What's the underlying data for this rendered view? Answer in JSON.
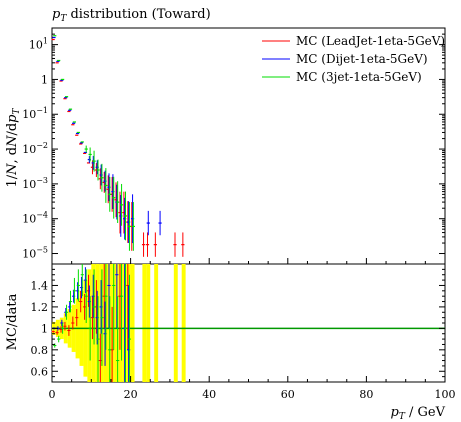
{
  "chart_data": {
    "type": "scatter",
    "title": "p_T distribution (Toward)",
    "xlabel": "p_T / GeV",
    "top_panel": {
      "ylabel": "1/N dN/dp_T",
      "yscale": "log",
      "ylim": [
        5e-06,
        30
      ],
      "yticks": [
        "10^-5",
        "10^-4",
        "10^-3",
        "10^-2",
        "10^-1",
        "1",
        "10^1"
      ],
      "legend_position": "top-right",
      "series": [
        {
          "name": "MC (LeadJet-1eta-5GeV)",
          "color": "#ff0000",
          "x": [
            0.5,
            1.5,
            2.5,
            3.5,
            4.5,
            5.5,
            6.5,
            7.5,
            8.5,
            9.5,
            10.5,
            11.5,
            12.5,
            13.5,
            14.5,
            15.5,
            16.5,
            17.5,
            18.5,
            19.5,
            20.5,
            23.5,
            24.5,
            26.5,
            31.5,
            33.5
          ],
          "y": [
            14,
            3.0,
            0.9,
            0.28,
            0.12,
            0.05,
            0.025,
            0.014,
            0.0075,
            0.004,
            0.003,
            0.0025,
            0.0014,
            0.0011,
            0.0007,
            0.0005,
            0.00035,
            0.00015,
            0.00015,
            8e-05,
            6e-05,
            1.8e-05,
            1.8e-05,
            1.8e-05,
            1.8e-05,
            1.8e-05
          ],
          "err_log": [
            0,
            0,
            0,
            0,
            0,
            0,
            0,
            0,
            0,
            0,
            0.2,
            0.2,
            0.3,
            0.3,
            0.4,
            0.5,
            0.5,
            0.6,
            0.6,
            0.6,
            0.7,
            0.35,
            0.35,
            0.35,
            0.35,
            0.35
          ]
        },
        {
          "name": "MC (Dijet-1eta-5GeV)",
          "color": "#0000ff",
          "x": [
            0.5,
            1.5,
            2.5,
            3.5,
            4.5,
            5.5,
            6.5,
            7.5,
            8.5,
            9.5,
            10.5,
            11.5,
            12.5,
            13.5,
            14.5,
            15.5,
            16.5,
            17.5,
            18.5,
            19.5,
            20.5,
            24.5,
            27.5
          ],
          "y": [
            16,
            3.3,
            0.95,
            0.3,
            0.13,
            0.055,
            0.028,
            0.015,
            0.008,
            0.005,
            0.004,
            0.003,
            0.0018,
            0.0012,
            0.0008,
            0.0006,
            0.0003,
            0.00012,
            0.0001,
            8e-05,
            0.0001,
            7.5e-05,
            7.5e-05
          ],
          "err_log": [
            0,
            0,
            0,
            0,
            0,
            0,
            0,
            0,
            0,
            0.1,
            0.2,
            0.2,
            0.3,
            0.3,
            0.4,
            0.5,
            0.5,
            0.6,
            0.6,
            0.6,
            0.7,
            0.35,
            0.35
          ]
        },
        {
          "name": "MC (3jet-1eta-5GeV)",
          "color": "#00dd00",
          "x": [
            0.5,
            1.5,
            2.5,
            3.5,
            4.5,
            5.5,
            6.5,
            7.5,
            8.5,
            9.5,
            10.5,
            11.5,
            12.5,
            13.5,
            14.5,
            15.5,
            16.5,
            17.5,
            18.5,
            19.5,
            20.5
          ],
          "y": [
            18,
            3.5,
            1.0,
            0.32,
            0.14,
            0.06,
            0.03,
            0.016,
            0.01,
            0.007,
            0.0045,
            0.0025,
            0.0015,
            0.0009,
            0.0005,
            0.0004,
            0.0003,
            0.00025,
            0.00012,
            6e-05,
            6e-05
          ],
          "err_log": [
            0,
            0,
            0,
            0,
            0,
            0,
            0,
            0,
            0.1,
            0.2,
            0.3,
            0.3,
            0.4,
            0.5,
            0.5,
            0.6,
            0.6,
            0.6,
            0.7,
            0.7,
            0.7
          ]
        }
      ]
    },
    "bottom_panel": {
      "ylabel": "MC/data",
      "ylim": [
        0.5,
        1.6
      ],
      "yticks": [
        0.6,
        0.8,
        1,
        1.2,
        1.4
      ],
      "reference_line": 1,
      "reference_color": "#009900",
      "band_color": "#ffff00",
      "band": [
        {
          "x": 0.5,
          "halfwidth": 0.06
        },
        {
          "x": 1.5,
          "halfwidth": 0.08
        },
        {
          "x": 2.5,
          "halfwidth": 0.1
        },
        {
          "x": 3.5,
          "halfwidth": 0.14
        },
        {
          "x": 4.5,
          "halfwidth": 0.18
        },
        {
          "x": 5.5,
          "halfwidth": 0.22
        },
        {
          "x": 6.5,
          "halfwidth": 0.28
        },
        {
          "x": 7.5,
          "halfwidth": 0.35
        },
        {
          "x": 8.5,
          "halfwidth": 0.45
        },
        {
          "x": 9.5,
          "halfwidth": 0.55
        },
        {
          "x": 10.5,
          "halfwidth": 0.6
        },
        {
          "x": 11.5,
          "halfwidth": 0.7
        },
        {
          "x": 12.5,
          "halfwidth": 0.8
        },
        {
          "x": 13.5,
          "halfwidth": 0.9
        },
        {
          "x": 14.5,
          "halfwidth": 1
        },
        {
          "x": 15.5,
          "halfwidth": 1
        },
        {
          "x": 16.5,
          "halfwidth": 1
        },
        {
          "x": 17.5,
          "halfwidth": 1
        },
        {
          "x": 18.5,
          "halfwidth": 1
        },
        {
          "x": 19.5,
          "halfwidth": 1
        },
        {
          "x": 20.5,
          "halfwidth": 1
        },
        {
          "x": 23.5,
          "halfwidth": 1
        },
        {
          "x": 24.5,
          "halfwidth": 1
        },
        {
          "x": 26.5,
          "halfwidth": 1
        },
        {
          "x": 31.5,
          "halfwidth": 1
        },
        {
          "x": 33.5,
          "halfwidth": 1
        }
      ],
      "ratios": [
        {
          "color": "#ff0000",
          "x": [
            0.5,
            1.5,
            2.5,
            3.5,
            4.5,
            5.5,
            6.5,
            7.5,
            8.5,
            9.5,
            10.5,
            11.5,
            12.5,
            13.5,
            15.5,
            17.5,
            19.5
          ],
          "y": [
            0.97,
            0.96,
            0.99,
            1.02,
            0.98,
            1.05,
            1.1,
            1.25,
            1.2,
            1.35,
            1.1,
            1.2,
            0.7,
            1.3,
            0.8,
            1.3,
            1.4
          ],
          "err": [
            0.01,
            0.02,
            0.03,
            0.04,
            0.05,
            0.06,
            0.08,
            0.1,
            0.12,
            0.15,
            0.2,
            0.25,
            0.25,
            0.3,
            0.4,
            0.5,
            0.6
          ]
        },
        {
          "color": "#0000ff",
          "x": [
            0.5,
            1.5,
            2.5,
            3.5,
            4.5,
            5.5,
            6.5,
            7.5,
            8.5,
            9.5,
            10.5,
            11.5,
            12.5,
            13.5,
            14.5,
            16.5,
            18.5,
            19.5
          ],
          "y": [
            1.0,
            1.0,
            1.05,
            1.15,
            1.2,
            1.3,
            1.35,
            1.38,
            1.45,
            1.25,
            1.3,
            1.1,
            1.2,
            0.95,
            1.4,
            1.5,
            1.0,
            0.8
          ],
          "err": [
            0.01,
            0.02,
            0.03,
            0.04,
            0.05,
            0.06,
            0.08,
            0.1,
            0.12,
            0.15,
            0.2,
            0.25,
            0.25,
            0.3,
            0.4,
            0.5,
            0.6,
            0.6
          ]
        },
        {
          "color": "#00dd00",
          "x": [
            0.5,
            1.5,
            2.5,
            3.5,
            4.5,
            5.5,
            6.5,
            7.5,
            8.5,
            9.5,
            10.5,
            11.5,
            12.5,
            13.5,
            14.5,
            15.5,
            16.5,
            17.5,
            18.5,
            19.5
          ],
          "y": [
            0.84,
            0.9,
            1.0,
            1.15,
            1.25,
            1.35,
            1.4,
            1.5,
            1.3,
            1.0,
            1.2,
            0.9,
            1.1,
            1.3,
            0.8,
            1.4,
            0.7,
            1.3,
            1.0,
            0.9
          ],
          "err": [
            0.02,
            0.03,
            0.05,
            0.07,
            0.1,
            0.12,
            0.15,
            0.2,
            0.25,
            0.3,
            0.35,
            0.4,
            0.45,
            0.5,
            0.5,
            0.6,
            0.6,
            0.6,
            0.6,
            0.6
          ]
        }
      ]
    },
    "xlim": [
      0,
      100
    ],
    "xticks": [
      0,
      20,
      40,
      60,
      80,
      100
    ]
  }
}
